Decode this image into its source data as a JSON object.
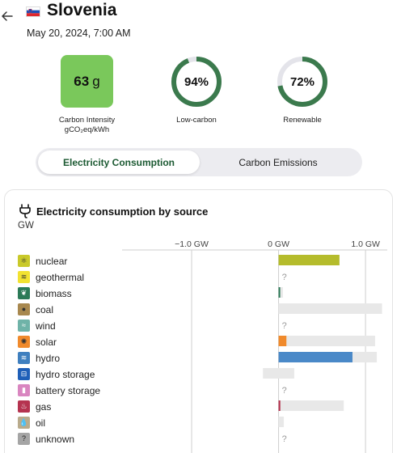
{
  "header": {
    "title": "Slovenia",
    "datetime": "May 20, 2024, 7:00 AM"
  },
  "metrics": {
    "carbon_intensity": {
      "value": "63",
      "unit": "g",
      "label_line1": "Carbon Intensity",
      "label_line2": "gCO₂eq/kWh",
      "color": "#7ac85b"
    },
    "low_carbon": {
      "value": "94%",
      "fraction": 0.94,
      "label": "Low-carbon",
      "color": "#3b7a4d"
    },
    "renewable": {
      "value": "72%",
      "fraction": 0.72,
      "label": "Renewable",
      "color": "#3b7a4d"
    }
  },
  "tabs": {
    "consumption": "Electricity Consumption",
    "emissions": "Carbon Emissions",
    "active": "consumption"
  },
  "panel": {
    "title": "Electricity consumption by source",
    "unit": "GW"
  },
  "chart_data": {
    "type": "bar",
    "orientation": "horizontal",
    "xlim": [
      -1.8,
      1.25
    ],
    "ticks": [
      {
        "value": -1.0,
        "label": "−1.0 GW"
      },
      {
        "value": 0,
        "label": "0 GW"
      },
      {
        "value": 1.0,
        "label": "1.0 GW"
      }
    ],
    "sources": [
      {
        "id": "nuclear",
        "label": "nuclear",
        "value": 0.7,
        "capacity": [
          0,
          0.7
        ],
        "color": "#b5bc2c",
        "icon_bg": "#c9c92a",
        "glyph": "⚛",
        "glyph_color": "#333"
      },
      {
        "id": "geothermal",
        "label": "geothermal",
        "value": null,
        "capacity": null,
        "color": "#f2e231",
        "icon_bg": "#f2e231",
        "glyph": "≋",
        "glyph_color": "#333"
      },
      {
        "id": "biomass",
        "label": "biomass",
        "value": 0.01,
        "capacity": [
          0,
          0.05
        ],
        "color": "#2b7a57",
        "icon_bg": "#2b7a57",
        "glyph": "❦",
        "glyph_color": "#fff"
      },
      {
        "id": "coal",
        "label": "coal",
        "value": 0,
        "capacity": [
          0,
          1.19
        ],
        "color": "#8d6c3d",
        "icon_bg": "#a8884f",
        "glyph": "●",
        "glyph_color": "#333"
      },
      {
        "id": "wind",
        "label": "wind",
        "value": null,
        "capacity": null,
        "color": "#5aa59a",
        "icon_bg": "#6fb3a8",
        "glyph": "≈",
        "glyph_color": "#fff"
      },
      {
        "id": "solar",
        "label": "solar",
        "value": 0.09,
        "capacity": [
          0,
          1.11
        ],
        "color": "#f08a2c",
        "icon_bg": "#f08a2c",
        "glyph": "✺",
        "glyph_color": "#333"
      },
      {
        "id": "hydro",
        "label": "hydro",
        "value": 0.85,
        "capacity": [
          0,
          1.13
        ],
        "color": "#4a89c8",
        "icon_bg": "#3f7fbf",
        "glyph": "≋",
        "glyph_color": "#fff"
      },
      {
        "id": "hydro_storage",
        "label": "hydro storage",
        "value": 0,
        "capacity": [
          -0.18,
          0.18
        ],
        "color": "#1f5fb8",
        "icon_bg": "#1f5fb8",
        "glyph": "⊟",
        "glyph_color": "#fff"
      },
      {
        "id": "battery_storage",
        "label": "battery storage",
        "value": null,
        "capacity": null,
        "color": "#d06fb0",
        "icon_bg": "#d986c0",
        "glyph": "▮",
        "glyph_color": "#fff"
      },
      {
        "id": "gas",
        "label": "gas",
        "value": 0.02,
        "capacity": [
          0,
          0.75
        ],
        "color": "#b5334f",
        "icon_bg": "#b5334f",
        "glyph": "♨",
        "glyph_color": "#fff"
      },
      {
        "id": "oil",
        "label": "oil",
        "value": 0,
        "capacity": [
          0,
          0.06
        ],
        "color": "#8a7c62",
        "icon_bg": "#b9ab8c",
        "glyph": "💧",
        "glyph_color": "#333"
      },
      {
        "id": "unknown",
        "label": "unknown",
        "value": null,
        "capacity": null,
        "color": "#8c8c8c",
        "icon_bg": "#a5a5a5",
        "glyph": "?",
        "glyph_color": "#222"
      }
    ],
    "missing_marker": "?"
  }
}
